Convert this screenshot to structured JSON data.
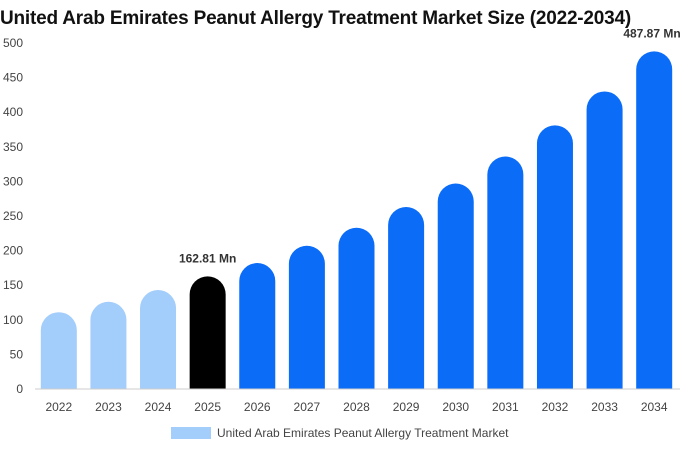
{
  "chart_data": {
    "type": "bar",
    "title": "United Arab Emirates Peanut Allergy Treatment Market Size (2022-2034)",
    "xlabel": "",
    "ylabel": "",
    "ylim": [
      0,
      500
    ],
    "yticks": [
      0,
      50,
      100,
      150,
      200,
      250,
      300,
      350,
      400,
      450,
      500
    ],
    "categories": [
      "2022",
      "2023",
      "2024",
      "2025",
      "2026",
      "2027",
      "2028",
      "2029",
      "2030",
      "2031",
      "2032",
      "2033",
      "2034"
    ],
    "series": [
      {
        "name": "United Arab Emirates Peanut Allergy Treatment Market",
        "values": [
          111,
          126,
          143,
          162.81,
          182,
          207,
          233,
          263,
          297,
          336,
          381,
          430,
          487.87
        ]
      }
    ],
    "data_labels": [
      {
        "index": 3,
        "text": "162.81 Mn"
      },
      {
        "index": 12,
        "text": "487.87 Mn"
      }
    ],
    "colors": {
      "historical": "#a3cdfb",
      "current": "#000000",
      "forecast": "#0a6cf7"
    },
    "grid": false,
    "legend_position": "bottom-center"
  }
}
